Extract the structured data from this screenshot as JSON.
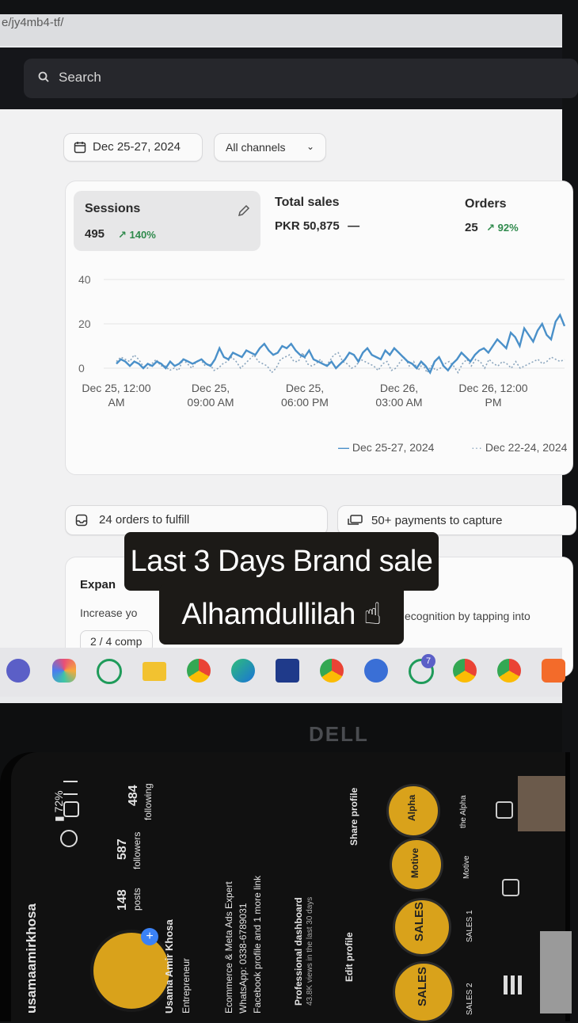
{
  "browser": {
    "url_fragment": "e/jy4mb4-tf/"
  },
  "search": {
    "placeholder": "Search"
  },
  "filters": {
    "date_range": "Dec 25-27, 2024",
    "channel": "All channels"
  },
  "metrics": {
    "sessions": {
      "title": "Sessions",
      "value": "495",
      "change": "140%"
    },
    "total_sales": {
      "title": "Total sales",
      "value": "PKR 50,875",
      "change": "—"
    },
    "orders": {
      "title": "Orders",
      "value": "25",
      "change": "92%"
    }
  },
  "chart_data": {
    "type": "line",
    "yticks": [
      "40",
      "20",
      "0"
    ],
    "ylim": [
      0,
      40
    ],
    "xticks": [
      [
        "Dec 25, 12:00",
        "AM"
      ],
      [
        "Dec 25,",
        "09:00 AM"
      ],
      [
        "Dec 25,",
        "06:00 PM"
      ],
      [
        "Dec 26,",
        "03:00 AM"
      ],
      [
        "Dec 26, 12:00",
        "PM"
      ]
    ],
    "series": [
      {
        "name": "Dec 25-27, 2024",
        "style": "solid",
        "color": "#4a90c9",
        "values": [
          2,
          4,
          3,
          1,
          3,
          2,
          0,
          2,
          1,
          3,
          2,
          0,
          3,
          1,
          2,
          4,
          3,
          2,
          3,
          4,
          2,
          1,
          4,
          9,
          5,
          4,
          7,
          6,
          5,
          8,
          7,
          6,
          9,
          11,
          8,
          6,
          7,
          10,
          9,
          11,
          8,
          6,
          5,
          8,
          4,
          3,
          2,
          1,
          3,
          0,
          2,
          4,
          7,
          6,
          3,
          7,
          9,
          6,
          5,
          4,
          8,
          6,
          9,
          7,
          5,
          3,
          2,
          0,
          3,
          1,
          -2,
          3,
          5,
          1,
          -1,
          2,
          4,
          7,
          5,
          3,
          6,
          8,
          9,
          7,
          10,
          13,
          11,
          9,
          16,
          14,
          10,
          18,
          15,
          12,
          17,
          20,
          15,
          13,
          21,
          24,
          19
        ]
      },
      {
        "name": "Dec 22-24, 2024",
        "style": "dotted",
        "color": "#8aa5bd",
        "values": [
          3,
          5,
          4,
          3,
          6,
          4,
          1,
          0,
          2,
          4,
          1,
          1,
          -1,
          0,
          -1,
          4,
          2,
          0,
          3,
          4,
          1,
          2,
          -1,
          0,
          2,
          3,
          5,
          3,
          0,
          2,
          4,
          6,
          3,
          2,
          1,
          -2,
          0,
          4,
          5,
          6,
          3,
          3,
          7,
          2,
          1,
          2,
          4,
          1,
          3,
          6,
          7,
          3,
          2,
          0,
          1,
          4,
          3,
          2,
          1,
          -1,
          2,
          3,
          -1,
          0,
          3,
          5,
          1,
          3,
          -1,
          2,
          -2,
          1,
          -1,
          0,
          2,
          3,
          1,
          -2,
          2,
          4,
          1,
          4,
          3,
          0,
          4,
          2,
          1,
          3,
          2,
          0,
          3,
          0,
          1,
          2,
          3,
          4,
          2,
          3,
          5,
          4,
          3,
          4
        ]
      }
    ]
  },
  "tasks": {
    "fulfill": "24 orders to fulfill",
    "capture": "50+ payments to capture"
  },
  "expand_card": {
    "title": "Expan",
    "text_left": "Increase yo",
    "text_right": "ecognition by tapping into",
    "progress": "2 / 4 comp"
  },
  "overlay": {
    "line1": "Last 3 Days Brand sale",
    "line2": "Alhamdullilah ☝"
  },
  "laptop": {
    "brand": "DELL"
  },
  "phone": {
    "username": "usamaamirkhosa",
    "posts": "148",
    "posts_label": "posts",
    "followers": "587",
    "followers_label": "followers",
    "following": "484",
    "following_label": "following",
    "name": "Usama Amir Khosa",
    "bio": [
      "Entrepreneur",
      "Ecommerce & Meta Ads Expert",
      "WhatsApp: 0338-6789031",
      "Facebook profile and 1 more link"
    ],
    "dashboard_title": "Professional dashboard",
    "dashboard_sub": "43.8K views in the last 30 days",
    "edit_profile": "Edit profile",
    "share_profile": "Share profile",
    "highlights": [
      "SALES",
      "SALES",
      "Motive",
      "Alpha"
    ],
    "highlight_captions": [
      "SALES 2",
      "SALES 1",
      "Motive",
      "the Alpha"
    ]
  },
  "colors": {
    "accent_green": "#2f8a4c",
    "chart_blue": "#4a90c9",
    "overlay_bg": "#1c1a17",
    "highlight_gold": "#d9a21b"
  }
}
